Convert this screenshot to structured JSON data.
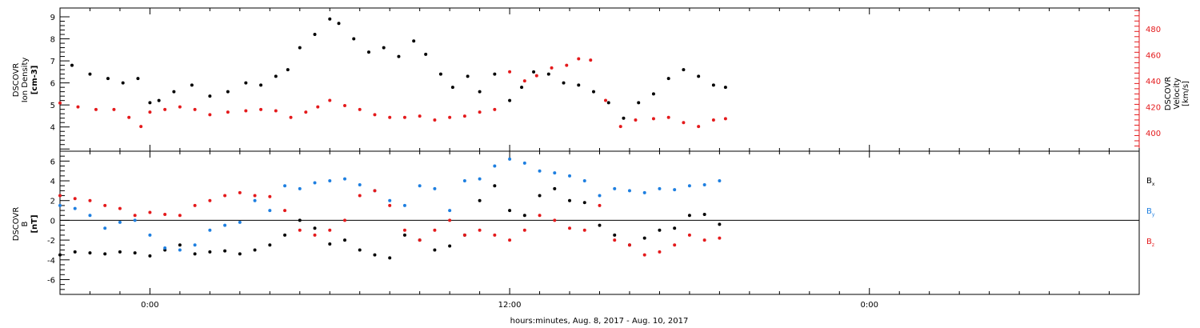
{
  "colors": {
    "density": "#000000",
    "velocity": "#e41a1c",
    "bx": "#000000",
    "by": "#1e7fe0",
    "bz": "#e41a1c",
    "axis": "#000000"
  },
  "xaxis": {
    "label": "hours:minutes, Aug.  8, 2017 - Aug. 10, 2017",
    "range_hours": [
      -3,
      33
    ],
    "ticks": [
      {
        "hour": 0,
        "label": "0:00"
      },
      {
        "hour": 12,
        "label": "12:00"
      },
      {
        "hour": 24,
        "label": "0:00"
      }
    ],
    "minor_step_hours": 1
  },
  "chart_data": [
    {
      "type": "scatter",
      "panel": "top",
      "ylabel_left": [
        "DSCOVR",
        "Ion Density",
        "[cm-3]"
      ],
      "ylabel_right": [
        "DSCOVR",
        "Velocity",
        "[km/s]"
      ],
      "ylim_left": [
        2.9,
        9.4
      ],
      "ylim_right": [
        386,
        496
      ],
      "left_ticks": [
        4,
        5,
        6,
        7,
        8,
        9
      ],
      "right_ticks": [
        400,
        420,
        440,
        460,
        480
      ],
      "series": [
        {
          "axis": "left",
          "color_key": "density",
          "x": [
            -2.6,
            -2.0,
            -1.4,
            -0.9,
            -0.4,
            0.0,
            0.3,
            0.8,
            1.4,
            2.0,
            2.6,
            3.2,
            3.7,
            4.2,
            4.6,
            5.0,
            5.5,
            6.0,
            6.3,
            6.8,
            7.3,
            7.8,
            8.3,
            8.8,
            9.2,
            9.7,
            10.1,
            10.6,
            11.0,
            11.5,
            12.0,
            12.4,
            12.8,
            13.3,
            13.8,
            14.3,
            14.8,
            15.3,
            15.8,
            16.3,
            16.8,
            17.3,
            17.8,
            18.3,
            18.8,
            19.2
          ],
          "y": [
            6.8,
            6.4,
            6.2,
            6.0,
            6.2,
            5.1,
            5.2,
            5.6,
            5.9,
            5.4,
            5.6,
            6.0,
            5.9,
            6.3,
            6.6,
            7.6,
            8.2,
            8.9,
            8.7,
            8.0,
            7.4,
            7.6,
            7.2,
            7.9,
            7.3,
            6.4,
            5.8,
            6.3,
            5.6,
            6.4,
            5.2,
            5.8,
            6.5,
            6.4,
            6.0,
            5.9,
            5.6,
            5.1,
            4.4,
            5.1,
            5.5,
            6.2,
            6.6,
            6.3,
            5.9,
            5.8
          ]
        },
        {
          "axis": "right",
          "color_key": "velocity",
          "x": [
            -3.0,
            -2.4,
            -1.8,
            -1.2,
            -0.7,
            -0.3,
            0.0,
            0.5,
            1.0,
            1.5,
            2.0,
            2.6,
            3.2,
            3.7,
            4.2,
            4.7,
            5.2,
            5.6,
            6.0,
            6.5,
            7.0,
            7.5,
            8.0,
            8.5,
            9.0,
            9.5,
            10.0,
            10.5,
            11.0,
            11.5,
            12.0,
            12.5,
            12.9,
            13.4,
            13.9,
            14.3,
            14.7,
            15.2,
            15.7,
            16.2,
            16.8,
            17.3,
            17.8,
            18.3,
            18.8,
            19.2
          ],
          "y": [
            423,
            420,
            418,
            418,
            412,
            405,
            416,
            418,
            420,
            418,
            414,
            416,
            417,
            418,
            417,
            412,
            416,
            420,
            425,
            421,
            418,
            414,
            412,
            412,
            413,
            410,
            412,
            413,
            416,
            418,
            447,
            440,
            444,
            450,
            452,
            457,
            456,
            425,
            405,
            410,
            411,
            412,
            408,
            405,
            410,
            411
          ]
        }
      ]
    },
    {
      "type": "scatter",
      "panel": "bottom",
      "ylabel_left": [
        "DSCOVR",
        "B",
        "[nT]"
      ],
      "ylim": [
        -7.5,
        7.0
      ],
      "ticks": [
        -6,
        -4,
        -2,
        0,
        2,
        4,
        6
      ],
      "zero_line": true,
      "series": [
        {
          "name": "Bx",
          "color_key": "bx",
          "x": [
            -3.0,
            -2.5,
            -2.0,
            -1.5,
            -1.0,
            -0.5,
            0.0,
            0.5,
            1.0,
            1.5,
            2.0,
            2.5,
            3.0,
            3.5,
            4.0,
            4.5,
            5.0,
            5.5,
            6.0,
            6.5,
            7.0,
            7.5,
            8.0,
            8.5,
            9.0,
            9.5,
            10.0,
            10.5,
            11.0,
            11.5,
            12.0,
            12.5,
            13.0,
            13.5,
            14.0,
            14.5,
            15.0,
            15.5,
            16.0,
            16.5,
            17.0,
            17.5,
            18.0,
            18.5,
            19.0
          ],
          "y": [
            -3.5,
            -3.2,
            -3.3,
            -3.4,
            -3.2,
            -3.3,
            -3.6,
            -3.0,
            -2.5,
            -3.4,
            -3.2,
            -3.1,
            -3.4,
            -3.0,
            -2.5,
            -1.5,
            0.0,
            -0.8,
            -2.4,
            -2.0,
            -3.0,
            -3.5,
            -3.8,
            -1.5,
            -2.0,
            -3.0,
            -2.6,
            -1.5,
            2.0,
            3.5,
            1.0,
            0.5,
            2.5,
            3.2,
            2.0,
            1.8,
            -0.5,
            -1.5,
            -2.5,
            -1.8,
            -1.0,
            -0.8,
            0.5,
            0.6,
            -0.4
          ]
        },
        {
          "name": "By",
          "color_key": "by",
          "x": [
            -3.0,
            -2.5,
            -2.0,
            -1.5,
            -1.0,
            -0.5,
            0.0,
            0.5,
            1.0,
            1.5,
            2.0,
            2.5,
            3.0,
            3.5,
            4.0,
            4.5,
            5.0,
            5.5,
            6.0,
            6.5,
            7.0,
            7.5,
            8.0,
            8.5,
            9.0,
            9.5,
            10.0,
            10.5,
            11.0,
            11.5,
            12.0,
            12.5,
            13.0,
            13.5,
            14.0,
            14.5,
            15.0,
            15.5,
            16.0,
            16.5,
            17.0,
            17.5,
            18.0,
            18.5,
            19.0
          ],
          "y": [
            1.5,
            1.2,
            0.5,
            -0.8,
            -0.2,
            0.0,
            -1.5,
            -2.8,
            -3.0,
            -2.5,
            -1.0,
            -0.5,
            -0.2,
            2.0,
            1.0,
            3.5,
            3.2,
            3.8,
            4.0,
            4.2,
            3.6,
            3.0,
            2.0,
            1.5,
            3.5,
            3.2,
            1.0,
            4.0,
            4.2,
            5.5,
            6.2,
            5.8,
            5.0,
            4.8,
            4.5,
            4.0,
            2.5,
            3.2,
            3.0,
            2.8,
            3.2,
            3.1,
            3.5,
            3.6,
            4.0
          ]
        },
        {
          "name": "Bz",
          "color_key": "bz",
          "x": [
            -3.0,
            -2.5,
            -2.0,
            -1.5,
            -1.0,
            -0.5,
            0.0,
            0.5,
            1.0,
            1.5,
            2.0,
            2.5,
            3.0,
            3.5,
            4.0,
            4.5,
            5.0,
            5.5,
            6.0,
            6.5,
            7.0,
            7.5,
            8.0,
            8.5,
            9.0,
            9.5,
            10.0,
            10.5,
            11.0,
            11.5,
            12.0,
            12.5,
            13.0,
            13.5,
            14.0,
            14.5,
            15.0,
            15.5,
            16.0,
            16.5,
            17.0,
            17.5,
            18.0,
            18.5,
            19.0
          ],
          "y": [
            2.5,
            2.2,
            2.0,
            1.5,
            1.2,
            0.5,
            0.8,
            0.6,
            0.5,
            1.5,
            2.0,
            2.5,
            2.8,
            2.5,
            2.4,
            1.0,
            -1.0,
            -1.5,
            -1.0,
            0.0,
            2.5,
            3.0,
            1.5,
            -1.0,
            -2.0,
            -1.0,
            0.0,
            -1.5,
            -1.0,
            -1.5,
            -2.0,
            -1.0,
            0.5,
            0.0,
            -0.8,
            -1.0,
            1.5,
            -2.0,
            -2.5,
            -3.5,
            -3.2,
            -2.5,
            -1.5,
            -2.0,
            -1.8
          ]
        }
      ],
      "legend": [
        {
          "base": "B",
          "sub": "x",
          "color_key": "bx"
        },
        {
          "base": "B",
          "sub": "y",
          "color_key": "by"
        },
        {
          "base": "B",
          "sub": "z",
          "color_key": "bz"
        }
      ]
    }
  ]
}
